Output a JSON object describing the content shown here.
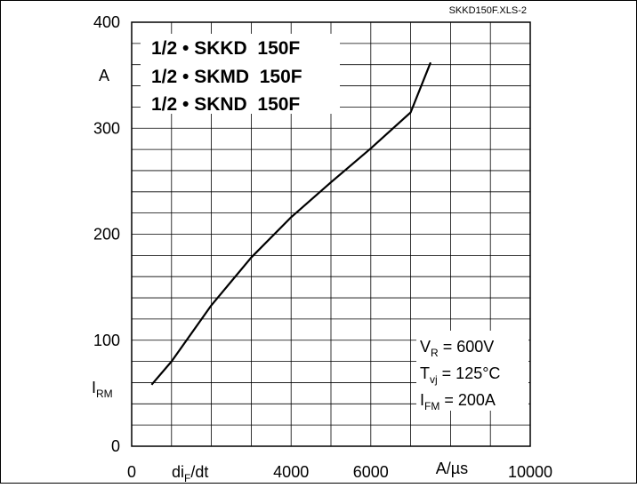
{
  "file_id": "SKKD150F.XLS-2",
  "chart_data": {
    "type": "line",
    "title_lines": [
      "1/2 • SKKD  150F",
      "1/2 • SKMD  150F",
      "1/2 • SKND  150F"
    ],
    "ylabel_unit": "A",
    "ylabel_symbol": {
      "main": "I",
      "sub": "RM"
    },
    "xlabel_symbol": {
      "main": "di",
      "sub": "F",
      "tail": "/dt"
    },
    "xlabel_unit": "A/µs",
    "x_tick_labels": [
      {
        "x": 0,
        "label": "0"
      },
      {
        "x": 4000,
        "label": "4000"
      },
      {
        "x": 6000,
        "label": "6000"
      },
      {
        "x": 10000,
        "label": "10000"
      }
    ],
    "y_tick_labels": [
      {
        "y": 0,
        "label": "0"
      },
      {
        "y": 100,
        "label": "100"
      },
      {
        "y": 200,
        "label": "200"
      },
      {
        "y": 300,
        "label": "300"
      },
      {
        "y": 400,
        "label": "400"
      }
    ],
    "xlim": [
      0,
      10000
    ],
    "ylim": [
      0,
      400
    ],
    "grid": true,
    "series": [
      {
        "x": [
          500,
          1000,
          2000,
          3000,
          4000,
          5000,
          6000,
          7000,
          7500
        ],
        "y": [
          58,
          80,
          133,
          178,
          216,
          249,
          281,
          315,
          362
        ],
        "color": "#000000"
      }
    ],
    "conditions": [
      {
        "main": "V",
        "sub": "R",
        "value": " = 600V"
      },
      {
        "main": "T",
        "sub": "vj",
        "value": " = 125°C"
      },
      {
        "main": "I",
        "sub": "FM",
        "value": " = 200A"
      }
    ]
  }
}
